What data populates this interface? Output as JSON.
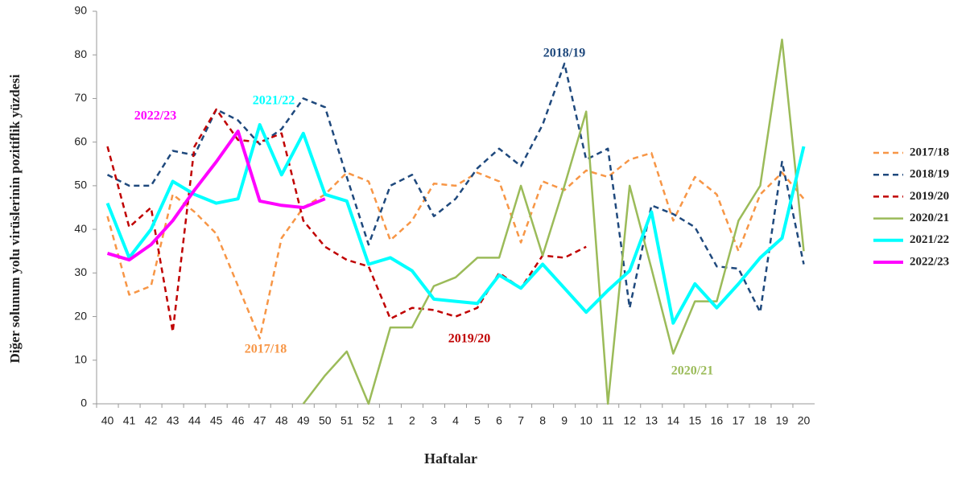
{
  "chart_data": {
    "type": "line",
    "ylabel": "Diğer solunum yolu virüslerinin pozitiflik yüzdesi",
    "xlabel": "Haftalar",
    "categories": [
      "40",
      "41",
      "42",
      "43",
      "44",
      "45",
      "46",
      "47",
      "48",
      "49",
      "50",
      "51",
      "52",
      "1",
      "2",
      "3",
      "4",
      "5",
      "6",
      "7",
      "8",
      "9",
      "10",
      "11",
      "12",
      "13",
      "14",
      "15",
      "16",
      "17",
      "18",
      "19",
      "20"
    ],
    "ylim": [
      0,
      90
    ],
    "yticks": [
      0,
      10,
      20,
      30,
      40,
      50,
      60,
      70,
      80,
      90
    ],
    "legend": "right",
    "series": [
      {
        "name": "2017/18",
        "color": "#f79646",
        "dashed": true,
        "width": 2.5,
        "values": [
          43,
          25,
          27,
          48,
          44,
          39,
          27,
          15,
          38,
          45,
          48,
          53,
          51,
          37.5,
          42,
          50.5,
          50,
          53,
          51,
          37,
          51,
          49,
          53.5,
          52,
          56,
          57.5,
          42,
          52,
          48,
          35,
          48,
          53,
          47
        ]
      },
      {
        "name": "2018/19",
        "color": "#1f497d",
        "dashed": true,
        "width": 2.5,
        "values": [
          52.5,
          50,
          50,
          58,
          57,
          67.5,
          65,
          59.5,
          63,
          70,
          68,
          52,
          36.5,
          50,
          52.5,
          43,
          47,
          54,
          58.5,
          54.5,
          64,
          78,
          56,
          58.5,
          22,
          45.5,
          43.5,
          40.5,
          31.5,
          31,
          21,
          55.5,
          32
        ]
      },
      {
        "name": "2019/20",
        "color": "#c00000",
        "dashed": true,
        "width": 2.5,
        "values": [
          59,
          40.5,
          45,
          16.5,
          59,
          67.5,
          60.5,
          60,
          62,
          42,
          36,
          33,
          31.5,
          19.5,
          22,
          21.5,
          20,
          22,
          30,
          26.5,
          34,
          33.5,
          36,
          null,
          null,
          null,
          null,
          null,
          null,
          null,
          null,
          null,
          null
        ]
      },
      {
        "name": "2020/21",
        "color": "#9bbb59",
        "dashed": false,
        "width": 2.5,
        "values": [
          null,
          null,
          null,
          null,
          null,
          null,
          null,
          null,
          null,
          0,
          6.5,
          12,
          0,
          17.5,
          17.5,
          27,
          29,
          33.5,
          33.5,
          50,
          34,
          50,
          67,
          0,
          50,
          31,
          11.5,
          23.5,
          23.5,
          42,
          50,
          83.5,
          35
        ]
      },
      {
        "name": "2021/22",
        "color": "#00ffff",
        "dashed": false,
        "width": 4,
        "values": [
          46,
          33.5,
          40,
          51,
          48,
          46,
          47,
          64,
          52.5,
          62,
          48,
          46.5,
          32,
          33.5,
          30.5,
          24,
          23.5,
          23,
          29.5,
          26.5,
          32,
          26.5,
          21,
          26,
          30.5,
          44,
          18.5,
          27.5,
          22,
          27.5,
          33.5,
          38,
          59
        ]
      },
      {
        "name": "2022/23",
        "color": "#ff00ff",
        "dashed": false,
        "width": 4,
        "values": [
          34.5,
          33,
          36.5,
          42,
          49,
          55.5,
          62.5,
          46.5,
          45.5,
          45,
          47,
          null,
          null,
          null,
          null,
          null,
          null,
          null,
          null,
          null,
          null,
          null,
          null,
          null,
          null,
          null,
          null,
          null,
          null,
          null,
          null,
          null,
          null
        ]
      }
    ]
  }
}
